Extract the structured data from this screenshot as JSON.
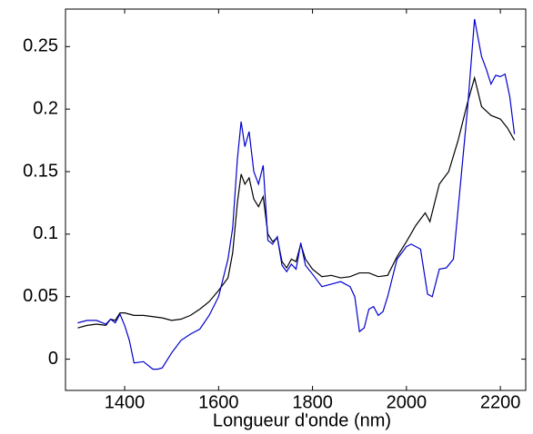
{
  "chart_data": {
    "type": "line",
    "xlabel": "Longueur d'onde (nm)",
    "xlim": [
      1274,
      2254
    ],
    "xticks": [
      1400,
      1600,
      1800,
      2000,
      2200
    ],
    "ylim": [
      -0.025,
      0.28
    ],
    "yticks": [
      0,
      0.05,
      0.1,
      0.15,
      0.2,
      0.25
    ],
    "grid": false,
    "series": [
      {
        "color": "#000000",
        "x": [
          1300,
          1320,
          1340,
          1360,
          1370,
          1380,
          1390,
          1400,
          1420,
          1440,
          1460,
          1480,
          1500,
          1520,
          1540,
          1560,
          1580,
          1600,
          1620,
          1630,
          1640,
          1648,
          1656,
          1665,
          1675,
          1685,
          1695,
          1705,
          1715,
          1725,
          1735,
          1745,
          1755,
          1765,
          1775,
          1785,
          1800,
          1820,
          1840,
          1860,
          1880,
          1900,
          1920,
          1940,
          1960,
          1980,
          2000,
          2020,
          2040,
          2050,
          2070,
          2090,
          2110,
          2130,
          2145,
          2160,
          2180,
          2200,
          2215,
          2230
        ],
        "values": [
          0.025,
          0.027,
          0.028,
          0.027,
          0.032,
          0.031,
          0.037,
          0.037,
          0.035,
          0.035,
          0.034,
          0.033,
          0.031,
          0.032,
          0.035,
          0.04,
          0.046,
          0.055,
          0.065,
          0.085,
          0.125,
          0.148,
          0.14,
          0.145,
          0.128,
          0.122,
          0.13,
          0.1,
          0.094,
          0.097,
          0.078,
          0.073,
          0.08,
          0.078,
          0.092,
          0.08,
          0.072,
          0.066,
          0.067,
          0.065,
          0.066,
          0.069,
          0.069,
          0.066,
          0.067,
          0.082,
          0.094,
          0.107,
          0.117,
          0.11,
          0.14,
          0.15,
          0.175,
          0.205,
          0.225,
          0.202,
          0.195,
          0.192,
          0.185,
          0.175
        ]
      },
      {
        "color": "#0000cc",
        "x": [
          1300,
          1320,
          1340,
          1360,
          1370,
          1380,
          1390,
          1400,
          1410,
          1420,
          1440,
          1460,
          1470,
          1480,
          1500,
          1520,
          1540,
          1560,
          1580,
          1600,
          1620,
          1630,
          1640,
          1648,
          1656,
          1665,
          1675,
          1685,
          1695,
          1705,
          1715,
          1725,
          1735,
          1745,
          1755,
          1765,
          1775,
          1785,
          1800,
          1820,
          1840,
          1860,
          1880,
          1890,
          1900,
          1910,
          1920,
          1930,
          1940,
          1950,
          1960,
          1980,
          2000,
          2010,
          2030,
          2045,
          2055,
          2070,
          2085,
          2100,
          2115,
          2130,
          2145,
          2160,
          2170,
          2180,
          2190,
          2200,
          2210,
          2220,
          2230
        ],
        "values": [
          0.029,
          0.031,
          0.031,
          0.028,
          0.032,
          0.029,
          0.036,
          0.027,
          0.015,
          -0.003,
          -0.002,
          -0.008,
          -0.008,
          -0.007,
          0.005,
          0.015,
          0.02,
          0.024,
          0.035,
          0.05,
          0.08,
          0.105,
          0.16,
          0.19,
          0.17,
          0.182,
          0.15,
          0.14,
          0.155,
          0.095,
          0.092,
          0.098,
          0.075,
          0.07,
          0.076,
          0.072,
          0.093,
          0.075,
          0.068,
          0.058,
          0.06,
          0.062,
          0.058,
          0.05,
          0.022,
          0.025,
          0.04,
          0.042,
          0.035,
          0.038,
          0.05,
          0.08,
          0.09,
          0.092,
          0.088,
          0.052,
          0.05,
          0.072,
          0.073,
          0.08,
          0.14,
          0.2,
          0.272,
          0.242,
          0.232,
          0.22,
          0.227,
          0.226,
          0.228,
          0.21,
          0.18
        ]
      }
    ]
  }
}
